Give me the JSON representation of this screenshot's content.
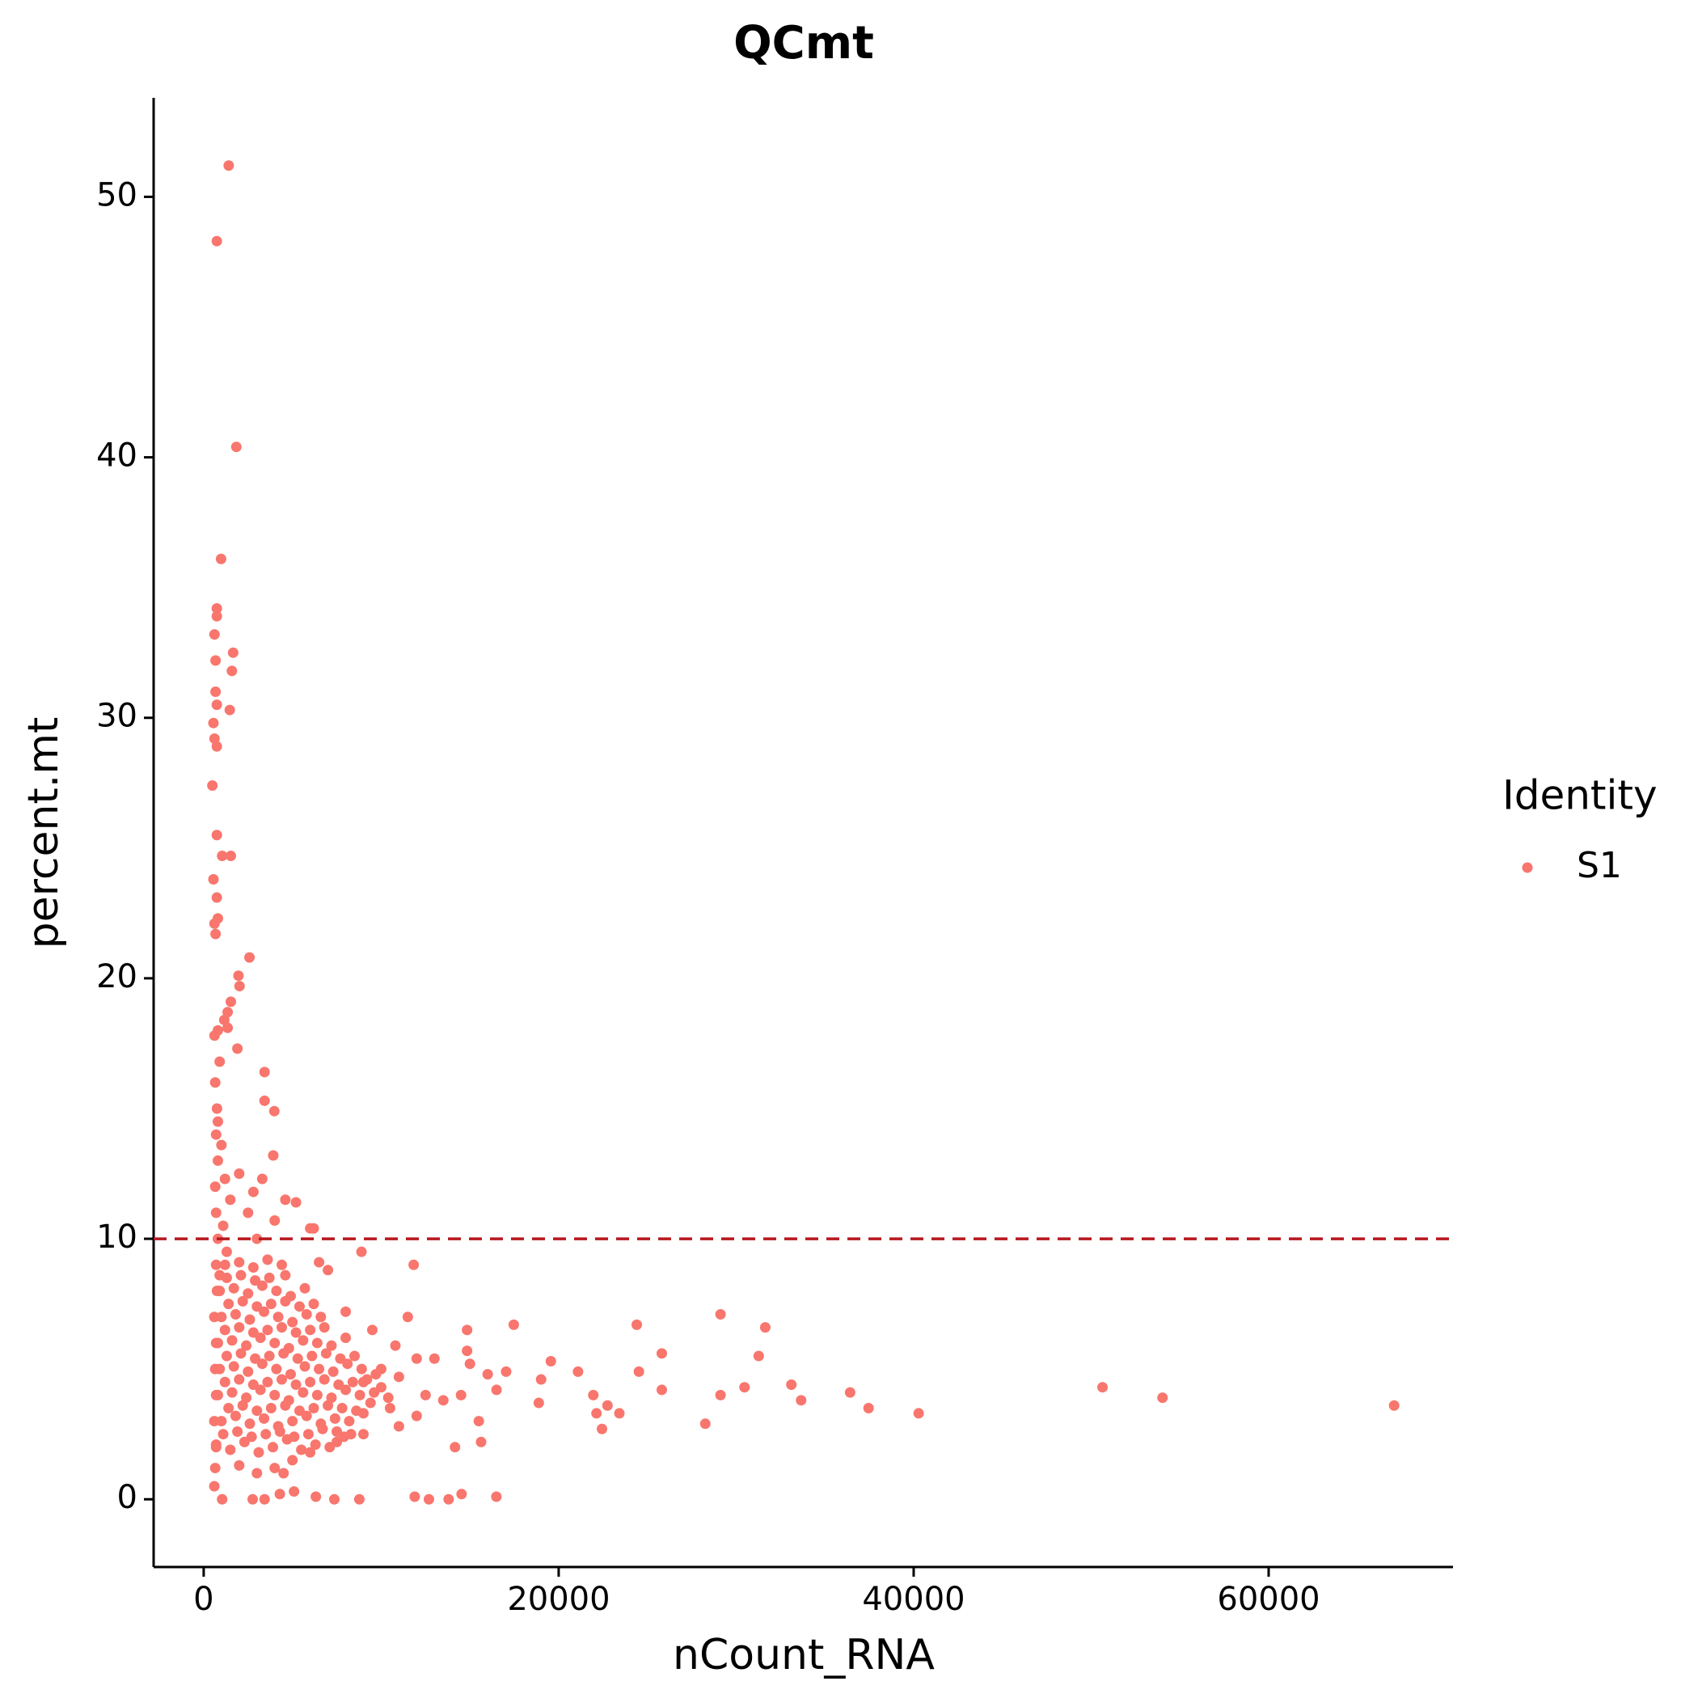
{
  "chart_data": {
    "type": "scatter",
    "title": "QCmt",
    "x_label": "nCount_RNA",
    "y_label": "percent.mt",
    "legend_title": "Identity",
    "legend_position": "right",
    "grid": false,
    "xlim": [
      -2820,
      70386
    ],
    "ylim": [
      -2.6,
      53.8
    ],
    "xticks": [
      0,
      20000,
      40000,
      60000
    ],
    "yticks": [
      0,
      10,
      20,
      30,
      40,
      50
    ],
    "reference_line": {
      "y": 10,
      "color": "#B8171E",
      "style": "dashed"
    },
    "series": [
      {
        "name": "S1",
        "color": "#F8766D",
        "x": [
          1410,
          740,
          1840,
          980,
          740,
          740,
          610,
          1660,
          670,
          1590,
          670,
          740,
          1470,
          550,
          610,
          740,
          490,
          740,
          1040,
          1530,
          550,
          740,
          800,
          610,
          670,
          2580,
          1960,
          2020,
          1530,
          1350,
          1160,
          1350,
          800,
          610,
          1900,
          3430,
          3980,
          3430,
          3920,
          8890,
          11830,
          17470,
          24400,
          29120,
          31640,
          31270,
          25810,
          19560,
          21090,
          24520,
          19010,
          17040,
          33110,
          30470,
          25810,
          50640,
          54020,
          36420,
          29120,
          21950,
          33660,
          18880,
          67070,
          37460,
          22750,
          22130,
          23420,
          40280,
          28260,
          22440,
          14160,
          15630,
          14840,
          14840,
          16490,
          14530,
          13800,
          12690,
          11890,
          8770,
          7360,
          6320,
          5090,
          4290,
          3430,
          2760,
          1040,
          600,
          650,
          700,
          600,
          700,
          650,
          700,
          600,
          750,
          700,
          800,
          700,
          650,
          800,
          700,
          750,
          650,
          900,
          800,
          1000,
          1200,
          1500,
          1100,
          1300,
          900,
          2000,
          2800,
          3300,
          4600,
          5200,
          6200,
          6000,
          4000,
          3000,
          2500,
          7000,
          6500,
          9500,
          10800,
          12000,
          13000,
          11500,
          10000,
          8000,
          9000,
          10500,
          12500,
          13500,
          11000,
          9000,
          7500,
          6000,
          5000,
          4000,
          3000,
          2000,
          4500,
          15000,
          16000,
          16500,
          15500,
          14500,
          12000,
          700,
          1500,
          2300,
          3100,
          3900,
          4700,
          5500,
          6300,
          7100,
          7900,
          1000,
          1800,
          2600,
          3400,
          4200,
          5000,
          5800,
          6600,
          7400,
          8200,
          9000,
          800,
          1600,
          2400,
          3200,
          4000,
          4800,
          5600,
          6400,
          7200,
          8000,
          8800,
          9600,
          10400,
          900,
          1700,
          2500,
          3300,
          4100,
          4900,
          5700,
          6500,
          7300,
          8100,
          8900,
          9700,
          800,
          1600,
          2400,
          3200,
          4000,
          4800,
          5600,
          6400,
          7200,
          8000,
          1000,
          1800,
          2600,
          3400,
          4200,
          5000,
          5800,
          6600,
          900,
          1700,
          2500,
          3300,
          4100,
          4900,
          5700,
          1200,
          2000,
          2800,
          3600,
          4400,
          1100,
          1900,
          2700,
          3500,
          4300,
          5100,
          5900,
          6700,
          7500,
          8300,
          1400,
          2200,
          3000,
          3800,
          4600,
          5400,
          6200,
          7000,
          7800,
          8600,
          9400,
          1200,
          2000,
          2800,
          3600,
          4400,
          5200,
          6000,
          6800,
          7600,
          8400,
          9200,
          10000,
          11000,
          1300,
          2100,
          2900,
          3700,
          4500,
          5300,
          6100,
          6900,
          7700,
          8500,
          1200,
          2000,
          2800,
          3600,
          4400,
          5200,
          6000,
          6800,
          1400,
          2200,
          3000,
          3800,
          4600,
          5400,
          6200,
          1300,
          2100,
          2900,
          3700,
          4600
        ],
        "values": [
          51.2,
          48.3,
          40.4,
          36.1,
          34.2,
          33.9,
          33.2,
          32.5,
          32.2,
          31.8,
          31.0,
          30.5,
          30.3,
          29.8,
          29.2,
          28.9,
          27.4,
          25.5,
          24.7,
          24.7,
          23.8,
          23.1,
          22.3,
          22.1,
          21.7,
          20.8,
          20.1,
          19.7,
          19.1,
          18.7,
          18.4,
          18.1,
          18.0,
          17.8,
          17.3,
          16.4,
          14.9,
          15.3,
          13.2,
          9.5,
          9.0,
          6.7,
          6.7,
          7.1,
          6.6,
          5.5,
          5.6,
          5.3,
          4.9,
          4.9,
          4.6,
          4.9,
          4.4,
          4.3,
          4.2,
          4.3,
          3.9,
          4.1,
          4.0,
          4.0,
          3.8,
          3.7,
          3.6,
          3.5,
          3.6,
          3.3,
          3.3,
          3.3,
          2.9,
          2.7,
          2.0,
          2.2,
          6.5,
          5.7,
          0.1,
          0.2,
          0.0,
          0.0,
          0.1,
          0.0,
          0.0,
          0.1,
          0.3,
          0.2,
          0.0,
          0.0,
          0.0,
          0.5,
          1.2,
          2.0,
          3.0,
          4.0,
          5.0,
          6.0,
          7.0,
          8.0,
          9.0,
          10.0,
          11.0,
          12.0,
          13.0,
          14.0,
          15.0,
          16.0,
          16.8,
          14.5,
          13.6,
          12.3,
          11.5,
          10.5,
          9.5,
          8.6,
          12.5,
          11.8,
          12.3,
          11.5,
          11.4,
          10.4,
          10.4,
          10.7,
          10.0,
          11.0,
          8.8,
          9.1,
          6.5,
          5.9,
          5.4,
          5.4,
          7.0,
          5.0,
          7.2,
          4.5,
          3.5,
          4.0,
          3.8,
          2.8,
          2.5,
          2.2,
          1.8,
          1.5,
          1.2,
          1.0,
          1.3,
          1.0,
          5.2,
          4.8,
          4.2,
          3.0,
          4.0,
          3.2,
          2.1,
          1.9,
          2.2,
          1.8,
          2.0,
          2.3,
          1.9,
          2.1,
          2.0,
          2.4,
          3.0,
          3.2,
          2.9,
          3.1,
          2.8,
          3.0,
          3.2,
          2.9,
          3.1,
          3.0,
          3.3,
          4.0,
          4.1,
          3.9,
          4.2,
          4.0,
          3.8,
          4.1,
          4.0,
          3.9,
          4.2,
          4.0,
          4.1,
          3.9,
          5.0,
          5.1,
          4.9,
          5.2,
          5.0,
          4.8,
          5.1,
          5.0,
          4.9,
          5.2,
          5.0,
          4.8,
          6.0,
          6.1,
          5.9,
          6.2,
          6.0,
          5.8,
          6.1,
          6.0,
          5.9,
          6.2,
          7.0,
          7.1,
          6.9,
          7.2,
          7.0,
          6.8,
          7.1,
          7.0,
          8.0,
          8.1,
          7.9,
          8.2,
          8.0,
          7.8,
          8.1,
          9.0,
          9.1,
          8.9,
          9.2,
          9.0,
          2.5,
          2.6,
          2.4,
          2.5,
          2.6,
          2.4,
          2.5,
          2.7,
          2.6,
          2.5,
          3.5,
          3.6,
          3.4,
          3.5,
          3.6,
          3.4,
          3.5,
          3.6,
          3.5,
          3.4,
          3.7,
          4.5,
          4.6,
          4.4,
          4.5,
          4.6,
          4.4,
          4.5,
          4.6,
          4.4,
          4.5,
          4.6,
          4.3,
          4.7,
          5.5,
          5.6,
          5.4,
          5.5,
          5.6,
          5.4,
          5.5,
          5.6,
          5.4,
          5.5,
          6.5,
          6.6,
          6.4,
          6.5,
          6.6,
          6.4,
          6.5,
          6.6,
          7.5,
          7.6,
          7.4,
          7.5,
          7.6,
          7.4,
          7.5,
          8.5,
          8.6,
          8.4,
          8.5,
          8.6
        ]
      }
    ]
  }
}
